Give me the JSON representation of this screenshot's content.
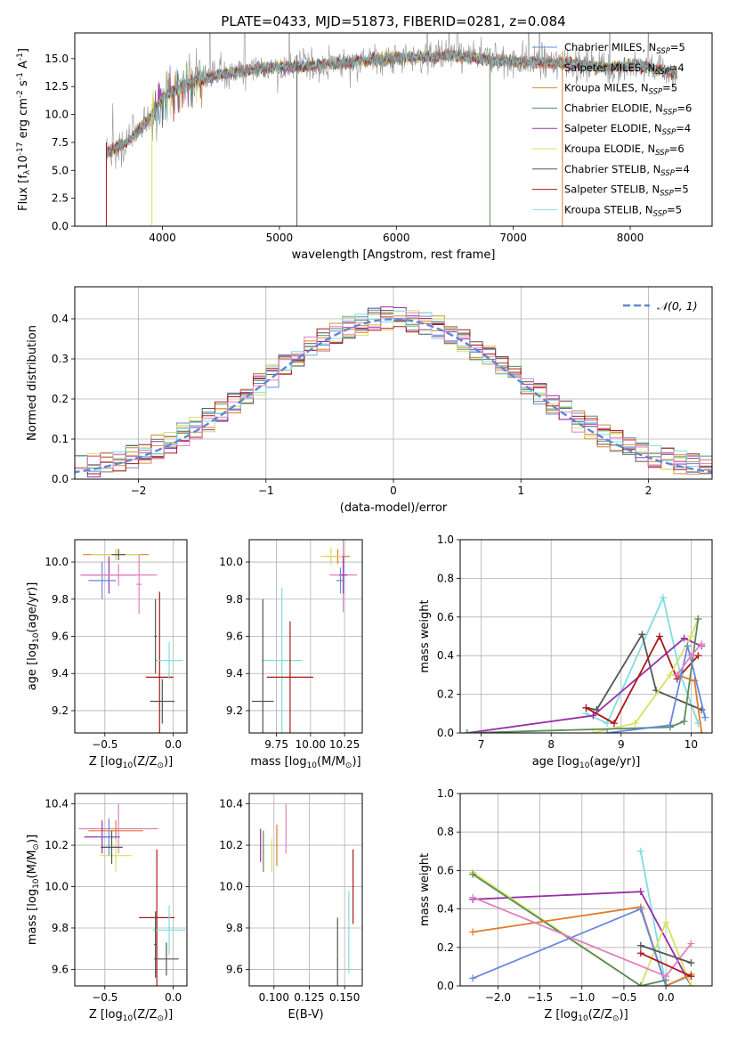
{
  "colors": {
    "Chabrier MILES": "#6688dd",
    "Salpeter MILES": "#e07b28",
    "Kroupa MILES": "#c8963a",
    "Chabrier ELODIE": "#5a8a5a",
    "Salpeter ELODIE": "#9a2ea8",
    "Kroupa ELODIE": "#d8e060",
    "Chabrier STELIB": "#555555",
    "Salpeter STELIB": "#aa1818",
    "Kroupa STELIB": "#7fdde0",
    "pink": "#e080c0",
    "lime": "#bfe04a",
    "grid": "#b0b0b0",
    "spectrum_gray": "#888888",
    "normal_dashed": "#5f87d0"
  },
  "chart_data": [
    {
      "id": "spectrum",
      "type": "line",
      "title": "PLATE=0433, MJD=51873, FIBERID=0281, z=0.084",
      "xlabel": "wavelength [Angstrom, rest frame]",
      "ylabel": "Flux [f$_\\lambda$10$^{-17}$ erg cm$^{-2}$ s$^{-1}$ A$^{-1}$]",
      "xlim": [
        3250,
        8700
      ],
      "ylim": [
        0,
        17.3
      ],
      "xticks": [
        4000,
        5000,
        6000,
        7000,
        8000
      ],
      "yticks": [
        0.0,
        2.5,
        5.0,
        7.5,
        10.0,
        12.5,
        15.0
      ],
      "ytick_labels": [
        "0.0",
        "2.5",
        "5.0",
        "7.5",
        "10.0",
        "12.5",
        "15.0"
      ],
      "legend_position": "right",
      "legend": [
        {
          "label": "Chabrier MILES, N",
          "sub": "SSP",
          "suffix": "=5",
          "key": "Chabrier MILES"
        },
        {
          "label": "Salpeter MILES, N",
          "sub": "SSP",
          "suffix": "=4",
          "key": "Salpeter MILES"
        },
        {
          "label": "Kroupa MILES, N",
          "sub": "SSP",
          "suffix": "=5",
          "key": "Kroupa MILES"
        },
        {
          "label": "Chabrier ELODIE, N",
          "sub": "SSP",
          "suffix": "=6",
          "key": "Chabrier ELODIE"
        },
        {
          "label": "Salpeter ELODIE, N",
          "sub": "SSP",
          "suffix": "=4",
          "key": "Salpeter ELODIE"
        },
        {
          "label": "Kroupa ELODIE, N",
          "sub": "SSP",
          "suffix": "=6",
          "key": "Kroupa ELODIE"
        },
        {
          "label": "Chabrier STELIB, N",
          "sub": "SSP",
          "suffix": "=4",
          "key": "Chabrier STELIB"
        },
        {
          "label": "Salpeter STELIB, N",
          "sub": "SSP",
          "suffix": "=5",
          "key": "Salpeter STELIB"
        },
        {
          "label": "Kroupa STELIB, N",
          "sub": "SSP",
          "suffix": "=5",
          "key": "Kroupa STELIB"
        }
      ],
      "continuum": [
        [
          3520,
          6.5
        ],
        [
          3700,
          7.5
        ],
        [
          3900,
          9.8
        ],
        [
          4000,
          11.5
        ],
        [
          4200,
          12.8
        ],
        [
          4500,
          13.6
        ],
        [
          4900,
          14.2
        ],
        [
          5300,
          14.4
        ],
        [
          5700,
          14.8
        ],
        [
          6100,
          15.1
        ],
        [
          6500,
          15.3
        ],
        [
          6900,
          14.8
        ],
        [
          7200,
          14.7
        ],
        [
          7500,
          14.6
        ],
        [
          7800,
          14.2
        ],
        [
          8100,
          14.4
        ],
        [
          8400,
          13.6
        ]
      ],
      "spike_lines": [
        {
          "x": 3520,
          "key": "Salpeter STELIB"
        },
        {
          "x": 3910,
          "key": "Kroupa ELODIE"
        },
        {
          "x": 5150,
          "key": "Chabrier STELIB"
        },
        {
          "x": 6800,
          "key": "Chabrier ELODIE"
        },
        {
          "x": 7420,
          "key": "Salpeter MILES"
        }
      ]
    },
    {
      "id": "residual-histogram",
      "type": "histogram",
      "xlabel": "(data-model)/error",
      "ylabel": "Normed distribution",
      "xlim": [
        -2.5,
        2.5
      ],
      "ylim": [
        0,
        0.48
      ],
      "xticks": [
        -2,
        -1,
        0,
        1,
        2
      ],
      "xtick_labels": [
        "−2",
        "−1",
        "0",
        "1",
        "2"
      ],
      "yticks": [
        0.0,
        0.1,
        0.2,
        0.3,
        0.4
      ],
      "ytick_labels": [
        "0.0",
        "0.1",
        "0.2",
        "0.3",
        "0.4"
      ],
      "legend": [
        {
          "label": "𝒩(0, 1)",
          "style": "dashed"
        }
      ],
      "legend_position": "top-right",
      "bin_width": 0.1,
      "normal_curve": {
        "mean": 0,
        "sigma": 1
      }
    },
    {
      "id": "age-vs-Z",
      "type": "scatter",
      "xlabel": "Z [log$_{10}$(Z/Z$_\\odot$)]",
      "ylabel": "age  [log$_{10}$(age/yr)]",
      "xlim": [
        -0.72,
        0.1
      ],
      "ylim": [
        9.08,
        10.12
      ],
      "xticks": [
        -0.5,
        0.0
      ],
      "xtick_labels": [
        "−0.5",
        "0.0"
      ],
      "yticks": [
        9.2,
        9.4,
        9.6,
        9.8,
        10.0
      ],
      "ytick_labels": [
        "9.2",
        "9.4",
        "9.6",
        "9.8",
        "10.0"
      ],
      "points": [
        {
          "x": -0.42,
          "y": 10.04,
          "xerr": 0.24,
          "yerr": 0.03,
          "key": "Salpeter MILES"
        },
        {
          "x": -0.42,
          "y": 10.04,
          "xerr": 0.18,
          "yerr": 0.03,
          "key": "Kroupa ELODIE"
        },
        {
          "x": -0.47,
          "y": 9.93,
          "xerr": 0.2,
          "yerr": 0.1,
          "key": "Salpeter ELODIE"
        },
        {
          "x": -0.52,
          "y": 9.9,
          "xerr": 0.1,
          "yerr": 0.1,
          "key": "Chabrier MILES"
        },
        {
          "x": -0.4,
          "y": 9.93,
          "xerr": 0.28,
          "yerr": 0.06,
          "key": "pink"
        },
        {
          "x": -0.4,
          "y": 10.04,
          "xerr": 0.05,
          "yerr": 0.03,
          "key": "Chabrier STELIB"
        },
        {
          "x": -0.25,
          "y": 9.88,
          "xerr": 0.02,
          "yerr": 0.16,
          "key": "pink"
        },
        {
          "x": -0.1,
          "y": 9.38,
          "xerr": 0.1,
          "yerr": 0.46,
          "key": "Salpeter STELIB"
        },
        {
          "x": -0.03,
          "y": 9.47,
          "xerr": 0.1,
          "yerr": 0.1,
          "key": "Kroupa STELIB"
        },
        {
          "x": -0.08,
          "y": 9.25,
          "xerr": 0.09,
          "yerr": 0.12,
          "key": "Chabrier STELIB"
        },
        {
          "x": -0.13,
          "y": 9.6,
          "xerr": 0.01,
          "yerr": 0.2,
          "key": "Chabrier STELIB"
        }
      ]
    },
    {
      "id": "age-vs-mass",
      "type": "scatter",
      "xlabel": "mass [log$_{10}$(M/M$_\\odot$)]",
      "ylabel": "",
      "xlim": [
        9.55,
        10.38
      ],
      "ylim": [
        9.08,
        10.12
      ],
      "xticks": [
        9.75,
        10.0,
        10.25
      ],
      "xtick_labels": [
        "9.75",
        "10.00",
        "10.25"
      ],
      "yticks": [
        9.2,
        9.4,
        9.6,
        9.8,
        10.0
      ],
      "ytick_labels": [
        "9.2",
        "9.4",
        "9.6",
        "9.8",
        "10.0"
      ],
      "points": [
        {
          "x": 10.2,
          "y": 10.03,
          "xerr": 0.09,
          "yerr": 0.04,
          "key": "Salpeter MILES"
        },
        {
          "x": 10.15,
          "y": 10.03,
          "xerr": 0.08,
          "yerr": 0.05,
          "key": "Kroupa ELODIE"
        },
        {
          "x": 10.24,
          "y": 9.93,
          "xerr": 0.1,
          "yerr": 0.2,
          "key": "pink"
        },
        {
          "x": 10.24,
          "y": 9.93,
          "xerr": 0.03,
          "yerr": 0.1,
          "key": "Salpeter ELODIE"
        },
        {
          "x": 10.22,
          "y": 9.9,
          "xerr": 0.03,
          "yerr": 0.07,
          "key": "Chabrier MILES"
        },
        {
          "x": 9.79,
          "y": 9.47,
          "xerr": 0.15,
          "yerr": 0.39,
          "key": "Kroupa STELIB"
        },
        {
          "x": 9.85,
          "y": 9.38,
          "xerr": 0.17,
          "yerr": 0.3,
          "key": "Salpeter STELIB"
        },
        {
          "x": 9.65,
          "y": 9.25,
          "xerr": 0.08,
          "yerr": 0.55,
          "key": "Chabrier STELIB"
        }
      ]
    },
    {
      "id": "massweight-vs-age",
      "type": "line",
      "xlabel": "age  [log$_{10}$(age/yr)]",
      "ylabel": "mass weight",
      "xlim": [
        6.7,
        10.3
      ],
      "ylim": [
        0,
        1.0
      ],
      "xticks": [
        7,
        8,
        9,
        10
      ],
      "xtick_labels": [
        "7",
        "8",
        "9",
        "10"
      ],
      "yticks": [
        0.0,
        0.2,
        0.4,
        0.6,
        0.8,
        1.0
      ],
      "ytick_labels": [
        "0.0",
        "0.2",
        "0.4",
        "0.6",
        "0.8",
        "1.0"
      ],
      "series": [
        {
          "key": "Kroupa STELIB",
          "x": [
            8.5,
            8.8,
            9.6,
            9.85,
            10.1
          ],
          "y": [
            0.1,
            0.05,
            0.7,
            0.3,
            0.05
          ]
        },
        {
          "key": "Chabrier STELIB",
          "x": [
            8.5,
            8.65,
            9.3,
            9.5,
            10.15
          ],
          "y": [
            0.13,
            0.12,
            0.51,
            0.22,
            0.12
          ]
        },
        {
          "key": "Salpeter ELODIE",
          "x": [
            6.8,
            8.6,
            9.9,
            10.15
          ],
          "y": [
            0.0,
            0.09,
            0.49,
            0.45
          ]
        },
        {
          "key": "Salpeter STELIB",
          "x": [
            8.5,
            8.9,
            9.55,
            9.8,
            10.1
          ],
          "y": [
            0.13,
            0.05,
            0.5,
            0.28,
            0.4
          ]
        },
        {
          "key": "Kroupa ELODIE",
          "x": [
            8.6,
            9.2,
            9.7,
            10.0,
            10.1
          ],
          "y": [
            0.0,
            0.05,
            0.3,
            0.5,
            0.59
          ]
        },
        {
          "key": "Chabrier ELODIE",
          "x": [
            6.8,
            9.7,
            9.9,
            10.1
          ],
          "y": [
            0.0,
            0.03,
            0.06,
            0.59
          ]
        },
        {
          "key": "Salpeter MILES",
          "x": [
            9.8,
            10.05,
            10.15
          ],
          "y": [
            0.3,
            0.27,
            0.0
          ]
        },
        {
          "key": "Chabrier MILES",
          "x": [
            8.8,
            9.7,
            9.95,
            10.2
          ],
          "y": [
            0.0,
            0.04,
            0.45,
            0.08
          ]
        },
        {
          "key": "pink",
          "x": [
            9.8,
            10.0,
            10.15
          ],
          "y": [
            0.3,
            0.4,
            0.46
          ]
        }
      ]
    },
    {
      "id": "mass-vs-Z",
      "type": "scatter",
      "xlabel": "Z [log$_{10}$(Z/Z$_\\odot$)]",
      "ylabel": "mass [log$_{10}$(M/M$_\\odot$)]",
      "xlim": [
        -0.72,
        0.1
      ],
      "ylim": [
        9.52,
        10.45
      ],
      "xticks": [
        -0.5,
        0.0
      ],
      "xtick_labels": [
        "−0.5",
        "0.0"
      ],
      "yticks": [
        9.6,
        9.8,
        10.0,
        10.2,
        10.4
      ],
      "ytick_labels": [
        "9.6",
        "9.8",
        "10.0",
        "10.2",
        "10.4"
      ],
      "points": [
        {
          "x": -0.4,
          "y": 10.28,
          "xerr": 0.29,
          "yerr": 0.12,
          "key": "pink"
        },
        {
          "x": -0.42,
          "y": 10.27,
          "xerr": 0.2,
          "yerr": 0.05,
          "key": "Salpeter MILES"
        },
        {
          "x": -0.52,
          "y": 10.24,
          "xerr": 0.13,
          "yerr": 0.08,
          "key": "Salpeter ELODIE"
        },
        {
          "x": -0.47,
          "y": 10.24,
          "xerr": 0.08,
          "yerr": 0.09,
          "key": "Chabrier MILES"
        },
        {
          "x": -0.42,
          "y": 10.15,
          "xerr": 0.12,
          "yerr": 0.08,
          "key": "Kroupa ELODIE"
        },
        {
          "x": -0.45,
          "y": 10.19,
          "xerr": 0.08,
          "yerr": 0.08,
          "key": "Chabrier STELIB"
        },
        {
          "x": -0.12,
          "y": 9.85,
          "xerr": 0.13,
          "yerr": 0.33,
          "key": "Salpeter STELIB"
        },
        {
          "x": -0.03,
          "y": 9.79,
          "xerr": 0.12,
          "yerr": 0.12,
          "key": "Kroupa STELIB"
        },
        {
          "x": -0.05,
          "y": 9.65,
          "xerr": 0.09,
          "yerr": 0.08,
          "key": "Chabrier STELIB"
        },
        {
          "x": -0.13,
          "y": 9.72,
          "xerr": 0.01,
          "yerr": 0.16,
          "key": "Chabrier STELIB"
        }
      ]
    },
    {
      "id": "mass-vs-EBV",
      "type": "scatter",
      "xlabel": "E(B-V)",
      "ylabel": "",
      "xlim": [
        0.0825,
        0.1625
      ],
      "ylim": [
        9.52,
        10.45
      ],
      "xticks": [
        0.1,
        0.125,
        0.15
      ],
      "xtick_labels": [
        "0.100",
        "0.125",
        "0.150"
      ],
      "yticks": [
        9.6,
        9.8,
        10.0,
        10.2,
        10.4
      ],
      "ytick_labels": [
        "9.6",
        "9.8",
        "10.0",
        "10.2",
        "10.4"
      ],
      "points": [
        {
          "x": 0.0905,
          "y": 10.2,
          "xerr": 0.0004,
          "yerr": 0.08,
          "key": "Salpeter ELODIE"
        },
        {
          "x": 0.0925,
          "y": 10.17,
          "xerr": 0.0004,
          "yerr": 0.1,
          "key": "Chabrier ELODIE"
        },
        {
          "x": 0.0985,
          "y": 10.15,
          "xerr": 0.0004,
          "yerr": 0.08,
          "key": "Kroupa ELODIE"
        },
        {
          "x": 0.102,
          "y": 10.2,
          "xerr": 0.0004,
          "yerr": 0.1,
          "key": "Salpeter MILES"
        },
        {
          "x": 0.1085,
          "y": 10.28,
          "xerr": 0.0004,
          "yerr": 0.12,
          "key": "pink"
        },
        {
          "x": 0.145,
          "y": 9.65,
          "xerr": 0.0004,
          "yerr": 0.2,
          "key": "Chabrier STELIB"
        },
        {
          "x": 0.153,
          "y": 9.78,
          "xerr": 0.0004,
          "yerr": 0.2,
          "key": "Kroupa STELIB"
        },
        {
          "x": 0.156,
          "y": 10.0,
          "xerr": 0.0004,
          "yerr": 0.18,
          "key": "Salpeter STELIB"
        }
      ]
    },
    {
      "id": "massweight-vs-Z",
      "type": "line",
      "xlabel": "Z [log$_{10}$(Z/Z$_\\odot$)]",
      "ylabel": "mass weight",
      "xlim": [
        -2.45,
        0.55
      ],
      "ylim": [
        0,
        1.0
      ],
      "xticks": [
        -2.0,
        -1.5,
        -1.0,
        -0.5,
        0.0
      ],
      "xtick_labels": [
        "−2.0",
        "−1.5",
        "−1.0",
        "−0.5",
        "0.0"
      ],
      "yticks": [
        0.0,
        0.2,
        0.4,
        0.6,
        0.8,
        1.0
      ],
      "ytick_labels": [
        "0.0",
        "0.2",
        "0.4",
        "0.6",
        "0.8",
        "1.0"
      ],
      "series": [
        {
          "key": "Kroupa STELIB",
          "x": [
            -0.3,
            0.0,
            0.3
          ],
          "y": [
            0.7,
            0.0,
            0.05
          ]
        },
        {
          "key": "Salpeter ELODIE",
          "x": [
            -2.3,
            -0.3,
            0.3
          ],
          "y": [
            0.45,
            0.49,
            0.0
          ]
        },
        {
          "key": "Kroupa ELODIE",
          "x": [
            -2.3,
            -0.3,
            0.0,
            0.3
          ],
          "y": [
            0.59,
            0.0,
            0.33,
            0.0
          ]
        },
        {
          "key": "Chabrier ELODIE",
          "x": [
            -2.3,
            -0.3,
            0.0
          ],
          "y": [
            0.58,
            0.0,
            0.03
          ]
        },
        {
          "key": "Salpeter MILES",
          "x": [
            -2.3,
            -0.3,
            0.0,
            0.3
          ],
          "y": [
            0.28,
            0.41,
            0.0,
            0.06
          ]
        },
        {
          "key": "Chabrier MILES",
          "x": [
            -2.3,
            -0.3,
            0.0
          ],
          "y": [
            0.04,
            0.4,
            0.0
          ]
        },
        {
          "key": "pink",
          "x": [
            -2.3,
            0.0,
            0.3
          ],
          "y": [
            0.46,
            0.05,
            0.22
          ]
        },
        {
          "key": "Chabrier STELIB",
          "x": [
            -0.3,
            0.3
          ],
          "y": [
            0.21,
            0.12
          ]
        },
        {
          "key": "Salpeter STELIB",
          "x": [
            -0.3,
            0.3
          ],
          "y": [
            0.17,
            0.05
          ]
        }
      ]
    }
  ]
}
